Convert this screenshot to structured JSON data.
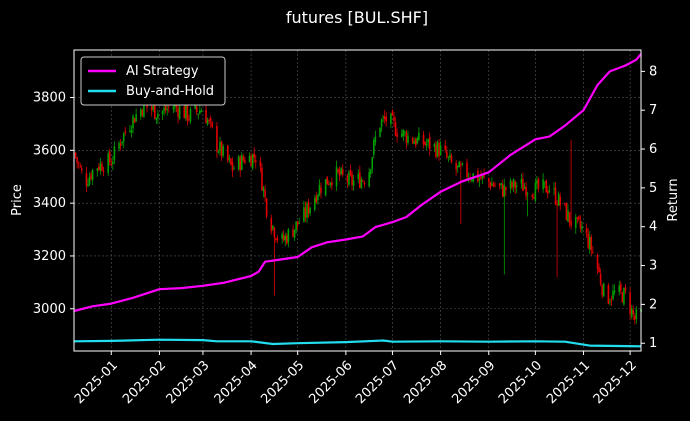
{
  "chart_data": {
    "type": "candlestick-with-lines",
    "title": "futures [BUL.SHF]",
    "ylabel_left": "Price",
    "ylabel_right": "Return",
    "xlabel": "",
    "grid": true,
    "legend_position": "top-left",
    "x_range": [
      "2024-12-08",
      "2025-12-08"
    ],
    "y_left_range": [
      2840,
      3980
    ],
    "y_right_range": [
      0.8,
      8.55
    ],
    "x_ticks": [
      "2025-01",
      "2025-02",
      "2025-03",
      "2025-04",
      "2025-05",
      "2025-06",
      "2025-07",
      "2025-08",
      "2025-09",
      "2025-10",
      "2025-11",
      "2025-12"
    ],
    "y_left_ticks": [
      "3000",
      "3200",
      "3400",
      "3600",
      "3800"
    ],
    "y_right_ticks": [
      "1",
      "2",
      "3",
      "4",
      "5",
      "6",
      "7",
      "8"
    ],
    "colors": {
      "up": "#00a000",
      "down": "#e00000",
      "ai": "#ff00ff",
      "bh": "#22ddee",
      "grid": "#555555",
      "axis": "#ffffff"
    },
    "price_anchors": [
      [
        "2024-12-08",
        3590
      ],
      [
        "2024-12-15",
        3480
      ],
      [
        "2024-12-22",
        3540
      ],
      [
        "2025-01-01",
        3560
      ],
      [
        "2025-01-08",
        3650
      ],
      [
        "2025-01-15",
        3720
      ],
      [
        "2025-01-22",
        3770
      ],
      [
        "2025-02-01",
        3740
      ],
      [
        "2025-02-10",
        3770
      ],
      [
        "2025-02-20",
        3730
      ],
      [
        "2025-03-01",
        3760
      ],
      [
        "2025-03-10",
        3620
      ],
      [
        "2025-03-20",
        3530
      ],
      [
        "2025-03-28",
        3570
      ],
      [
        "2025-04-05",
        3580
      ],
      [
        "2025-04-12",
        3350
      ],
      [
        "2025-04-20",
        3250
      ],
      [
        "2025-04-28",
        3300
      ],
      [
        "2025-05-06",
        3360
      ],
      [
        "2025-05-15",
        3460
      ],
      [
        "2025-05-25",
        3510
      ],
      [
        "2025-06-05",
        3480
      ],
      [
        "2025-06-15",
        3500
      ],
      [
        "2025-06-22",
        3700
      ],
      [
        "2025-06-28",
        3720
      ],
      [
        "2025-07-05",
        3670
      ],
      [
        "2025-07-15",
        3640
      ],
      [
        "2025-07-25",
        3620
      ],
      [
        "2025-08-01",
        3600
      ],
      [
        "2025-08-10",
        3530
      ],
      [
        "2025-08-20",
        3510
      ],
      [
        "2025-09-01",
        3480
      ],
      [
        "2025-09-10",
        3450
      ],
      [
        "2025-09-20",
        3470
      ],
      [
        "2025-10-01",
        3450
      ],
      [
        "2025-10-10",
        3460
      ],
      [
        "2025-10-18",
        3390
      ],
      [
        "2025-10-25",
        3320
      ],
      [
        "2025-11-01",
        3300
      ],
      [
        "2025-11-08",
        3200
      ],
      [
        "2025-11-15",
        3040
      ],
      [
        "2025-11-22",
        3060
      ],
      [
        "2025-11-28",
        3050
      ],
      [
        "2025-12-04",
        2960
      ],
      [
        "2025-12-08",
        2980
      ]
    ],
    "wick_spikes": [
      [
        "2025-04-16",
        3050
      ],
      [
        "2025-08-14",
        3320
      ],
      [
        "2025-09-11",
        3130
      ],
      [
        "2025-09-26",
        3350
      ],
      [
        "2025-10-05",
        3180
      ],
      [
        "2025-10-15",
        3120
      ],
      [
        "2025-10-24",
        3640
      ],
      [
        "2025-10-26",
        3620
      ]
    ],
    "series": [
      {
        "name": "AI Strategy",
        "axis": "right",
        "points": [
          [
            "2024-12-08",
            1.83
          ],
          [
            "2024-12-20",
            1.95
          ],
          [
            "2025-01-01",
            2.02
          ],
          [
            "2025-01-15",
            2.17
          ],
          [
            "2025-02-01",
            2.39
          ],
          [
            "2025-02-15",
            2.42
          ],
          [
            "2025-03-01",
            2.48
          ],
          [
            "2025-03-15",
            2.56
          ],
          [
            "2025-04-01",
            2.73
          ],
          [
            "2025-04-06",
            2.85
          ],
          [
            "2025-04-10",
            3.1
          ],
          [
            "2025-04-14",
            3.12
          ],
          [
            "2025-05-01",
            3.22
          ],
          [
            "2025-05-10",
            3.47
          ],
          [
            "2025-05-20",
            3.6
          ],
          [
            "2025-06-01",
            3.67
          ],
          [
            "2025-06-12",
            3.75
          ],
          [
            "2025-06-20",
            3.99
          ],
          [
            "2025-07-01",
            4.12
          ],
          [
            "2025-07-10",
            4.25
          ],
          [
            "2025-07-20",
            4.57
          ],
          [
            "2025-08-01",
            4.9
          ],
          [
            "2025-08-15",
            5.17
          ],
          [
            "2025-09-01",
            5.4
          ],
          [
            "2025-09-15",
            5.85
          ],
          [
            "2025-10-01",
            6.25
          ],
          [
            "2025-10-10",
            6.32
          ],
          [
            "2025-10-20",
            6.6
          ],
          [
            "2025-11-01",
            7.0
          ],
          [
            "2025-11-10",
            7.65
          ],
          [
            "2025-11-18",
            8.0
          ],
          [
            "2025-11-28",
            8.15
          ],
          [
            "2025-12-05",
            8.3
          ],
          [
            "2025-12-08",
            8.45
          ]
        ]
      },
      {
        "name": "Buy-and-Hold",
        "axis": "right",
        "points": [
          [
            "2024-12-08",
            1.05
          ],
          [
            "2025-01-01",
            1.06
          ],
          [
            "2025-02-01",
            1.09
          ],
          [
            "2025-03-01",
            1.08
          ],
          [
            "2025-03-10",
            1.05
          ],
          [
            "2025-04-01",
            1.05
          ],
          [
            "2025-04-15",
            0.98
          ],
          [
            "2025-05-01",
            1.0
          ],
          [
            "2025-06-01",
            1.03
          ],
          [
            "2025-06-25",
            1.07
          ],
          [
            "2025-07-01",
            1.04
          ],
          [
            "2025-08-01",
            1.05
          ],
          [
            "2025-09-01",
            1.04
          ],
          [
            "2025-10-01",
            1.05
          ],
          [
            "2025-10-20",
            1.04
          ],
          [
            "2025-11-05",
            0.94
          ],
          [
            "2025-12-08",
            0.92
          ]
        ]
      }
    ]
  }
}
